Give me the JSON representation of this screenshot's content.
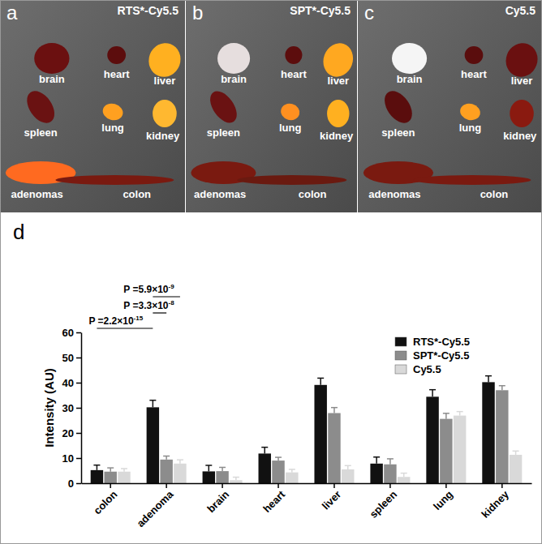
{
  "panels": [
    {
      "label": "a",
      "title": "RTS*-Cy5.5",
      "organs": [
        "brain",
        "heart",
        "liver",
        "spleen",
        "lung",
        "kidney",
        "adenomas",
        "colon"
      ]
    },
    {
      "label": "b",
      "title": "SPT*-Cy5.5",
      "organs": [
        "brain",
        "heart",
        "liver",
        "spleen",
        "lung",
        "kidney",
        "adenomas",
        "colon"
      ]
    },
    {
      "label": "c",
      "title": "Cy5.5",
      "organs": [
        "brain",
        "heart",
        "liver",
        "spleen",
        "lung",
        "kidney",
        "adenomas",
        "colon"
      ]
    }
  ],
  "chart_data": {
    "type": "bar",
    "panel_label": "d",
    "y_label": "Intensity (AU)",
    "categories": [
      "colon",
      "adenoma",
      "brain",
      "heart",
      "liver",
      "spleen",
      "lung",
      "kidney"
    ],
    "series": [
      {
        "name": "RTS*-Cy5.5",
        "color": "#111111",
        "values": [
          5.2,
          30.2,
          4.7,
          11.8,
          39.1,
          7.8,
          34.4,
          40.2
        ],
        "errors": [
          2.0,
          2.8,
          2.4,
          2.5,
          2.7,
          2.6,
          2.8,
          2.5
        ]
      },
      {
        "name": "SPT*-Cy5.5",
        "color": "#8c8c8c",
        "values": [
          4.6,
          9.4,
          4.8,
          9.0,
          27.9,
          7.5,
          25.6,
          37.0
        ],
        "errors": [
          1.5,
          1.4,
          1.5,
          1.3,
          2.2,
          2.2,
          2.2,
          1.8
        ]
      },
      {
        "name": "Cy5.5",
        "color": "#d9d9d9",
        "values": [
          4.6,
          7.8,
          1.2,
          4.3,
          5.5,
          2.5,
          26.9,
          11.3
        ],
        "errors": [
          1.2,
          1.5,
          1.2,
          1.2,
          1.5,
          1.5,
          1.6,
          1.5
        ]
      }
    ],
    "ylim": [
      0,
      60
    ],
    "yticks": [
      0,
      10,
      20,
      30,
      40,
      50,
      60
    ],
    "legend": "upper right",
    "annotations": [
      {
        "text": "P =2.2×10",
        "exponent": "-15"
      },
      {
        "text": "P =5.9×10",
        "exponent": "-9"
      },
      {
        "text": "P =3.3×10",
        "exponent": "-8"
      }
    ]
  }
}
